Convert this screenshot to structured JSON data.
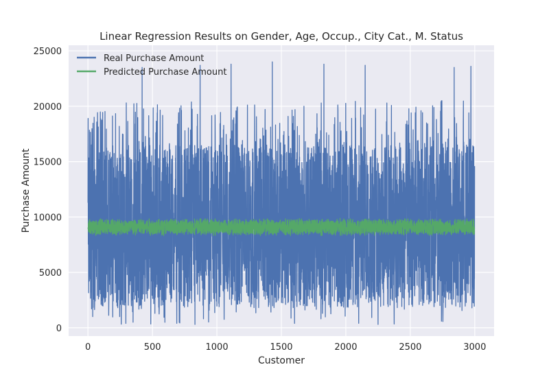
{
  "chart_data": {
    "type": "line",
    "title": "Linear Regression Results on Gender, Age, Occup., City Cat., M. Status",
    "xlabel": "Customer",
    "ylabel": "Purchase Amount",
    "xlim": [
      -150,
      3150
    ],
    "ylim": [
      -750,
      25500
    ],
    "xticks": [
      0,
      500,
      1000,
      1500,
      2000,
      2500,
      3000
    ],
    "yticks": [
      0,
      5000,
      10000,
      15000,
      20000,
      25000
    ],
    "grid": true,
    "legend_position": "top-left",
    "series": [
      {
        "name": "Real Purchase Amount",
        "color": "#4c72b0",
        "n_points": 3000,
        "typical_range": [
          1000,
          20000
        ],
        "min": 300,
        "max": 24000,
        "peaks": [
          {
            "x": 420,
            "y": 23500
          },
          {
            "x": 870,
            "y": 23700
          },
          {
            "x": 1110,
            "y": 23800
          },
          {
            "x": 1430,
            "y": 24000
          },
          {
            "x": 1830,
            "y": 23800
          },
          {
            "x": 2150,
            "y": 23700
          },
          {
            "x": 2840,
            "y": 23500
          },
          {
            "x": 2970,
            "y": 23600
          }
        ],
        "troughs": [
          {
            "x": 830,
            "y": 300
          },
          {
            "x": 2100,
            "y": 400
          },
          {
            "x": 2250,
            "y": 300
          },
          {
            "x": 350,
            "y": 500
          }
        ]
      },
      {
        "name": "Predicted Purchase Amount",
        "color": "#55a868",
        "n_points": 3000,
        "typical_range": [
          8300,
          10000
        ],
        "mean": 9100,
        "min": 8200,
        "max": 10200
      }
    ]
  }
}
